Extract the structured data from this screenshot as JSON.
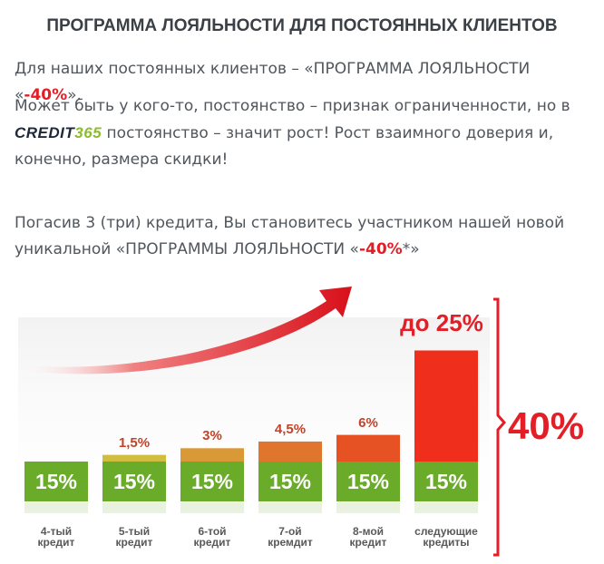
{
  "title": "ПРОГРАММА ЛОЯЛЬНОСТИ ДЛЯ ПОСТОЯННЫХ КЛИЕНТОВ",
  "p1": {
    "before": "Для наших постоянных клиентов – «ПРОГРАММА ЛОЯЛЬНОСТИ «",
    "red": "-40%",
    "after": "»."
  },
  "p2": {
    "line1": "Может быть у кого-то, постоянство – признак ограниченности, но в",
    "brand_a": "CREDIT",
    "brand_b": "365",
    "line2_rest": " постоянство – значит рост! Рост взаимного доверия и,",
    "line3": "конечно, размера скидки!"
  },
  "p3": {
    "line1": "Погасив 3 (три) кредита, Вы становитесь участником нашей новой",
    "line2_before": "уникальной «ПРОГРАММЫ ЛОЯЛЬНОСТИ «",
    "red": "-40%",
    "line2_after": "*»"
  },
  "chart_data": {
    "type": "bar",
    "categories": [
      "4-тый кредит",
      "5-тый кредит",
      "6-той кредит",
      "7-ой кремдит",
      "8-мой кредит",
      "следующие кредиты"
    ],
    "category_lines": [
      [
        "4-тый",
        "кредит"
      ],
      [
        "5-тый",
        "кредит"
      ],
      [
        "6-той",
        "кредит"
      ],
      [
        "7-ой",
        "кремдит"
      ],
      [
        "8-мой",
        "кредит"
      ],
      [
        "следующие",
        "кредиты"
      ]
    ],
    "base_label": "15%",
    "base_value": 15,
    "extra_values": [
      0,
      1.5,
      3,
      4.5,
      6,
      25
    ],
    "extra_labels": [
      "",
      "1,5%",
      "3%",
      "4,5%",
      "6%",
      "до 25%"
    ],
    "total_label": "40%",
    "colors": {
      "base": "#6aab2a",
      "red": "#e41e26",
      "top_start": "#c9e048",
      "top_end": "#ef2f1c"
    }
  }
}
